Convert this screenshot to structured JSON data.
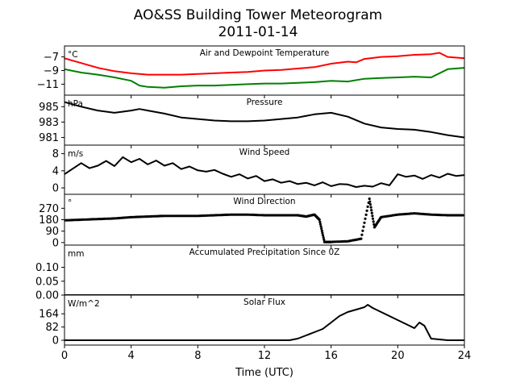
{
  "figure": {
    "title": "AO&SS Building Tower Meteorogram",
    "subtitle": "2011-01-14",
    "xlabel": "Time (UTC)"
  },
  "chart_data": [
    {
      "type": "line",
      "title": "Air and Dewpoint Temperature",
      "unit": "°C",
      "ylim": [
        -12.6,
        -5.4
      ],
      "yticks": [
        -7,
        -9,
        -11
      ],
      "xlim": [
        0,
        24
      ],
      "xticks": [
        0,
        4,
        8,
        12,
        16,
        20,
        24
      ],
      "series": [
        {
          "color": "#ff0000",
          "x": [
            0,
            1,
            2,
            3,
            4,
            5,
            6,
            7,
            8,
            9,
            10,
            11,
            12,
            13,
            14,
            15,
            16,
            17,
            17.5,
            18,
            19,
            20,
            21,
            22,
            22.5,
            23,
            24
          ],
          "y": [
            -7.2,
            -7.9,
            -8.6,
            -9.1,
            -9.4,
            -9.6,
            -9.6,
            -9.6,
            -9.5,
            -9.4,
            -9.3,
            -9.2,
            -9.0,
            -8.9,
            -8.7,
            -8.5,
            -8.0,
            -7.7,
            -7.8,
            -7.3,
            -7.0,
            -6.9,
            -6.7,
            -6.6,
            -6.4,
            -7.0,
            -7.2
          ]
        },
        {
          "color": "#008000",
          "x": [
            0,
            1,
            2,
            3,
            4,
            4.5,
            5,
            6,
            7,
            8,
            9,
            10,
            11,
            12,
            13,
            14,
            15,
            16,
            17,
            18,
            19,
            20,
            21,
            22,
            23,
            24
          ],
          "y": [
            -8.8,
            -9.3,
            -9.6,
            -10.0,
            -10.5,
            -11.2,
            -11.4,
            -11.5,
            -11.3,
            -11.2,
            -11.2,
            -11.1,
            -11.0,
            -10.9,
            -10.9,
            -10.8,
            -10.7,
            -10.5,
            -10.6,
            -10.2,
            -10.1,
            -10.0,
            -9.9,
            -10.0,
            -8.8,
            -8.6
          ]
        }
      ]
    },
    {
      "type": "line",
      "title": "Pressure",
      "unit": "hPa",
      "ylim": [
        980.0,
        986.5
      ],
      "yticks": [
        985,
        983,
        981
      ],
      "xlim": [
        0,
        24
      ],
      "series": [
        {
          "color": "#000000",
          "x": [
            0,
            1,
            2,
            3,
            4,
            4.5,
            5,
            6,
            7,
            8,
            9,
            10,
            11,
            12,
            13,
            14,
            15,
            16,
            17,
            18,
            19,
            20,
            21,
            22,
            23,
            24
          ],
          "y": [
            985.6,
            985.0,
            984.5,
            984.2,
            984.5,
            984.7,
            984.5,
            984.1,
            983.6,
            983.4,
            983.2,
            983.1,
            983.1,
            983.2,
            983.4,
            983.6,
            984.0,
            984.2,
            983.7,
            982.8,
            982.3,
            982.1,
            982.0,
            981.7,
            981.3,
            981.0
          ]
        }
      ]
    },
    {
      "type": "line",
      "title": "Wind Speed",
      "unit": "m/s",
      "ylim": [
        -1.5,
        10
      ],
      "yticks": [
        8,
        4,
        0
      ],
      "xlim": [
        0,
        24
      ],
      "series": [
        {
          "color": "#000000",
          "x": [
            0,
            0.5,
            1,
            1.5,
            2,
            2.5,
            3,
            3.5,
            4,
            4.5,
            5,
            5.5,
            6,
            6.5,
            7,
            7.5,
            8,
            8.5,
            9,
            9.5,
            10,
            10.5,
            11,
            11.5,
            12,
            12.5,
            13,
            13.5,
            14,
            14.5,
            15,
            15.5,
            16,
            16.5,
            17,
            17.5,
            18,
            18.5,
            19,
            19.5,
            20,
            20.5,
            21,
            21.5,
            22,
            22.5,
            23,
            23.5,
            24
          ],
          "y": [
            3.2,
            4.5,
            5.8,
            4.6,
            5.2,
            6.3,
            5.1,
            7.2,
            6.0,
            6.8,
            5.5,
            6.4,
            5.2,
            5.8,
            4.4,
            5.0,
            4.1,
            3.8,
            4.2,
            3.3,
            2.6,
            3.2,
            2.2,
            2.8,
            1.6,
            2.0,
            1.2,
            1.6,
            0.9,
            1.2,
            0.6,
            1.3,
            0.4,
            0.9,
            0.8,
            0.2,
            0.5,
            0.3,
            1.1,
            0.6,
            3.2,
            2.6,
            2.9,
            2.1,
            3.0,
            2.4,
            3.3,
            2.8,
            3.0
          ]
        }
      ]
    },
    {
      "type": "scatter",
      "title": "Wind Direction",
      "unit": "°",
      "ylim": [
        -20,
        380
      ],
      "yticks": [
        270,
        180,
        90,
        0
      ],
      "xlim": [
        0,
        24
      ],
      "series": [
        {
          "color": "#000000",
          "x": [
            0,
            1,
            2,
            3,
            4,
            5,
            6,
            7,
            8,
            9,
            10,
            11,
            12,
            13,
            14,
            14.5,
            15,
            15.3,
            15.6,
            16,
            17,
            17.8,
            18.3,
            18.6,
            19,
            20,
            21,
            22,
            23,
            24
          ],
          "y": [
            175,
            180,
            185,
            190,
            200,
            205,
            210,
            210,
            210,
            215,
            220,
            220,
            215,
            215,
            215,
            205,
            220,
            180,
            5,
            5,
            10,
            30,
            345,
            120,
            200,
            220,
            230,
            220,
            215,
            215
          ]
        }
      ]
    },
    {
      "type": "line",
      "title": "Accumulated Precipitation Since 0Z",
      "unit": "mm",
      "ylim": [
        0.0,
        0.18
      ],
      "yticks": [
        0.1,
        0.05,
        0.0
      ],
      "xlim": [
        0,
        24
      ],
      "series": [
        {
          "color": "#000000",
          "x": [
            0,
            24
          ],
          "y": [
            0,
            0
          ]
        }
      ]
    },
    {
      "type": "line",
      "title": "Solar Flux",
      "unit": "W/m^2",
      "ylim": [
        -30,
        280
      ],
      "yticks": [
        164,
        82,
        0
      ],
      "xlim": [
        0,
        24
      ],
      "series": [
        {
          "color": "#000000",
          "x": [
            0,
            13.5,
            14,
            14.5,
            15,
            15.5,
            16,
            16.5,
            17,
            17.5,
            18,
            18.2,
            18.5,
            19,
            19.5,
            20,
            20.5,
            21,
            21.3,
            21.6,
            22,
            23,
            24
          ],
          "y": [
            0,
            0,
            10,
            30,
            50,
            70,
            110,
            150,
            175,
            190,
            205,
            220,
            200,
            175,
            150,
            125,
            100,
            75,
            110,
            90,
            10,
            0,
            0
          ]
        }
      ]
    }
  ]
}
